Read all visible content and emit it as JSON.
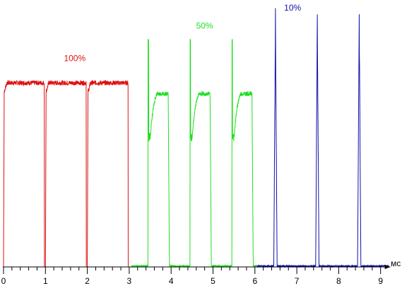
{
  "chart_data": {
    "type": "line",
    "title": "",
    "xlabel": "",
    "ylabel": "",
    "x_unit": "мс",
    "xlim": [
      0,
      9.2
    ],
    "ylim": [
      0,
      1.2
    ],
    "x_ticks": [
      0,
      1,
      2,
      3,
      4,
      5,
      6,
      7,
      8,
      9
    ],
    "x_tick_labels": [
      "0",
      "1",
      "2",
      "3",
      "4",
      "5",
      "6",
      "7",
      "8",
      "9"
    ],
    "grid": false,
    "series": [
      {
        "name": "100%",
        "color": "#dd1111",
        "x_range": [
          0,
          3.05
        ],
        "period_ms": 1.0,
        "pulse_start_ms": [
          0.0,
          1.0,
          2.0,
          3.0
        ],
        "plateau_level": 0.85,
        "duty": 0.98
      },
      {
        "name": "50%",
        "color": "#22dd22",
        "x_range": [
          3.05,
          6.05
        ],
        "period_ms": 1.0,
        "pulse_start_ms": [
          3.45,
          4.45,
          5.45
        ],
        "pulse_width_ms": 0.48,
        "spike_level": 1.05,
        "dip_level": 0.6,
        "plateau_level": 0.8
      },
      {
        "name": "10%",
        "color": "#1111aa",
        "x_range": [
          6.05,
          9.2
        ],
        "period_ms": 1.0,
        "pulse_start_ms": [
          6.45,
          7.45,
          8.45
        ],
        "pulse_width_ms": 0.08,
        "peak_level": 1.2
      }
    ]
  }
}
